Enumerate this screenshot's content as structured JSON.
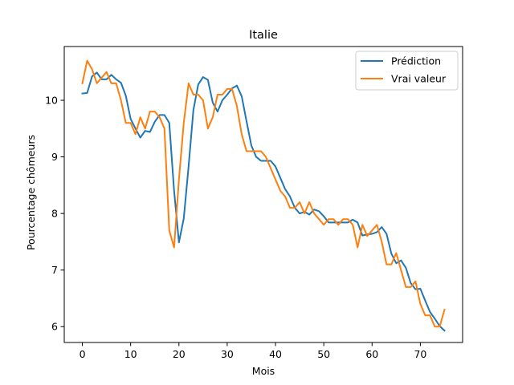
{
  "chart_data": {
    "type": "line",
    "title": "Italie",
    "xlabel": "Mois",
    "ylabel": "Pourcentage chômeurs",
    "xlim": [
      -3.75,
      78.75
    ],
    "ylim": [
      5.72,
      10.95
    ],
    "xticks": [
      0,
      10,
      20,
      30,
      40,
      50,
      60,
      70
    ],
    "yticks": [
      6,
      7,
      8,
      9,
      10
    ],
    "grid": false,
    "legend_position": "top-right",
    "x": [
      0,
      1,
      2,
      3,
      4,
      5,
      6,
      7,
      8,
      9,
      10,
      11,
      12,
      13,
      14,
      15,
      16,
      17,
      18,
      19,
      20,
      21,
      22,
      23,
      24,
      25,
      26,
      27,
      28,
      29,
      30,
      31,
      32,
      33,
      34,
      35,
      36,
      37,
      38,
      39,
      40,
      41,
      42,
      43,
      44,
      45,
      46,
      47,
      48,
      49,
      50,
      51,
      52,
      53,
      54,
      55,
      56,
      57,
      58,
      59,
      60,
      61,
      62,
      63,
      64,
      65,
      66,
      67,
      68,
      69,
      70,
      71,
      72,
      73,
      74,
      75
    ],
    "series": [
      {
        "name": "Prédiction",
        "color": "#1f77b4",
        "values": [
          10.12,
          10.13,
          10.42,
          10.49,
          10.37,
          10.37,
          10.45,
          10.37,
          10.31,
          10.08,
          9.67,
          9.5,
          9.34,
          9.46,
          9.44,
          9.62,
          9.74,
          9.74,
          9.6,
          8.4,
          7.49,
          7.91,
          8.83,
          9.83,
          10.28,
          10.41,
          10.36,
          9.96,
          9.8,
          10.0,
          10.1,
          10.21,
          10.26,
          10.07,
          9.63,
          9.2,
          9.0,
          8.93,
          8.93,
          8.93,
          8.83,
          8.63,
          8.43,
          8.3,
          8.1,
          8.0,
          8.03,
          7.98,
          8.07,
          8.04,
          7.95,
          7.84,
          7.84,
          7.84,
          7.84,
          7.84,
          7.89,
          7.84,
          7.61,
          7.63,
          7.64,
          7.67,
          7.76,
          7.64,
          7.29,
          7.12,
          7.17,
          7.04,
          6.77,
          6.66,
          6.67,
          6.46,
          6.26,
          6.14,
          6.01,
          5.93
        ]
      },
      {
        "name": "Vrai valeur",
        "color": "#ff7f0e",
        "values": [
          10.3,
          10.7,
          10.55,
          10.3,
          10.4,
          10.5,
          10.3,
          10.3,
          10.0,
          9.6,
          9.6,
          9.4,
          9.7,
          9.5,
          9.8,
          9.8,
          9.7,
          9.5,
          7.7,
          7.4,
          8.6,
          9.6,
          10.3,
          10.1,
          10.1,
          10.0,
          9.5,
          9.7,
          10.1,
          10.1,
          10.2,
          10.2,
          9.9,
          9.4,
          9.1,
          9.1,
          9.1,
          9.1,
          9.0,
          8.8,
          8.6,
          8.4,
          8.3,
          8.1,
          8.1,
          8.2,
          8.0,
          8.2,
          8.0,
          7.9,
          7.8,
          7.9,
          7.9,
          7.8,
          7.9,
          7.9,
          7.8,
          7.4,
          7.8,
          7.6,
          7.7,
          7.8,
          7.5,
          7.1,
          7.1,
          7.3,
          7.0,
          6.7,
          6.7,
          6.8,
          6.4,
          6.2,
          6.2,
          6.0,
          6.0,
          6.3
        ]
      }
    ]
  }
}
